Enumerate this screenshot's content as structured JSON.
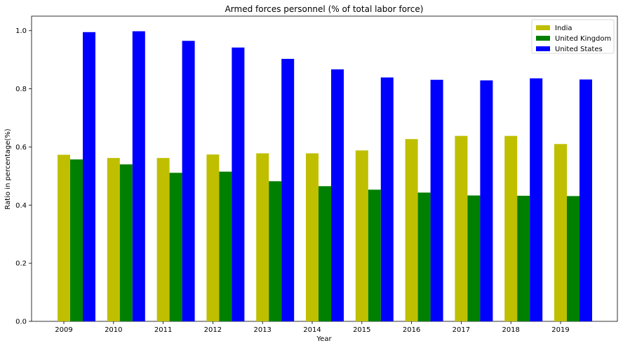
{
  "chart_data": {
    "type": "bar",
    "title": "Armed forces personnel (% of total labor force)",
    "xlabel": "Year",
    "ylabel": "Ratio in percentage(%)",
    "categories": [
      "2009",
      "2010",
      "2011",
      "2012",
      "2013",
      "2014",
      "2015",
      "2016",
      "2017",
      "2018",
      "2019"
    ],
    "ylim": [
      0,
      1.05
    ],
    "yticks": [
      "0.0",
      "0.2",
      "0.4",
      "0.6",
      "0.8",
      "1.0"
    ],
    "legend_position": "top-right",
    "series": [
      {
        "name": "India",
        "color": "#bfbf00",
        "values": [
          0.573,
          0.562,
          0.562,
          0.574,
          0.578,
          0.578,
          0.588,
          0.627,
          0.638,
          0.638,
          0.61
        ]
      },
      {
        "name": "United Kingdom",
        "color": "#008000",
        "values": [
          0.557,
          0.54,
          0.511,
          0.515,
          0.482,
          0.465,
          0.453,
          0.443,
          0.433,
          0.432,
          0.431
        ]
      },
      {
        "name": "United States",
        "color": "#0000ff",
        "values": [
          0.995,
          0.998,
          0.965,
          0.942,
          0.903,
          0.867,
          0.839,
          0.831,
          0.829,
          0.836,
          0.832
        ]
      }
    ]
  }
}
